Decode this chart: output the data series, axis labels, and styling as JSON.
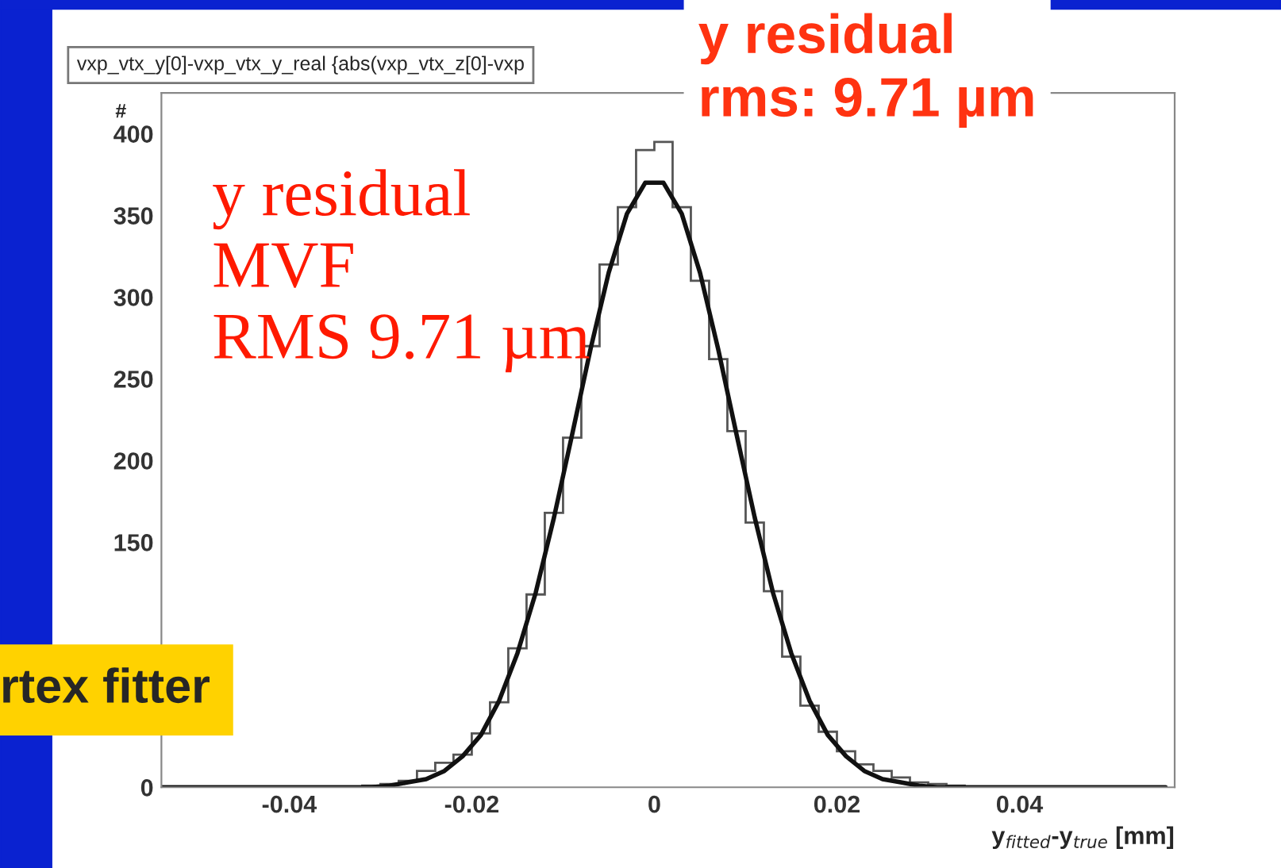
{
  "chart_data": {
    "type": "histogram",
    "xlabel": "y$_{fitted}$-y$_{true}$ [mm]",
    "ylabel": "#",
    "bins": [
      -0.054,
      -0.052,
      -0.05,
      -0.048,
      -0.046,
      -0.044,
      -0.042,
      -0.04,
      -0.038,
      -0.036,
      -0.034,
      -0.032,
      -0.03,
      -0.028,
      -0.026,
      -0.024,
      -0.022,
      -0.02,
      -0.018,
      -0.016,
      -0.014,
      -0.012,
      -0.01,
      -0.008,
      -0.006,
      -0.004,
      -0.002,
      0,
      0.002,
      0.004,
      0.006,
      0.008,
      0.01,
      0.012,
      0.014,
      0.016,
      0.018,
      0.02,
      0.022,
      0.024,
      0.026,
      0.028,
      0.03,
      0.032,
      0.034,
      0.036,
      0.038,
      0.04,
      0.042,
      0.044,
      0.046,
      0.048,
      0.05,
      0.052,
      0.054,
      0.056
    ],
    "values": [
      0,
      0,
      0,
      0,
      0,
      0,
      0,
      0,
      0,
      0,
      0,
      1,
      2,
      4,
      10,
      15,
      20,
      33,
      52,
      85,
      118,
      168,
      214,
      270,
      320,
      355,
      390,
      395,
      355,
      310,
      262,
      218,
      162,
      120,
      80,
      50,
      34,
      22,
      14,
      10,
      6,
      3,
      2,
      1,
      0,
      0,
      0,
      0,
      0,
      0,
      0,
      0,
      0,
      0,
      0
    ],
    "color": "#555555",
    "series": [
      {
        "type": "line",
        "color": "#111111",
        "x": [
          -0.054,
          -0.04,
          -0.035,
          -0.031,
          -0.029,
          -0.027,
          -0.025,
          -0.023,
          -0.021,
          -0.019,
          -0.017,
          -0.015,
          -0.013,
          -0.011,
          -0.009,
          -0.007,
          -0.005,
          -0.003,
          -0.001,
          0.001,
          0.003,
          0.005,
          0.007,
          0.009,
          0.011,
          0.013,
          0.015,
          0.017,
          0.019,
          0.021,
          0.023,
          0.025,
          0.027,
          0.029,
          0.031,
          0.035,
          0.04,
          0.056
        ],
        "values": [
          0,
          0,
          0,
          0,
          1,
          3,
          5,
          10,
          19,
          32,
          53,
          82,
          119,
          165,
          216,
          268,
          315,
          351,
          370,
          370,
          351,
          315,
          268,
          216,
          165,
          119,
          82,
          53,
          32,
          19,
          10,
          5,
          3,
          1,
          0,
          0,
          0,
          0
        ]
      }
    ],
    "xlim": [
      -0.054,
      0.057
    ],
    "ylim": [
      0,
      425
    ],
    "xticks": [
      -0.04,
      -0.02,
      0,
      0.02,
      0.04
    ],
    "yticks": [
      0,
      150,
      200,
      250,
      300,
      350,
      400
    ],
    "grid": false,
    "annotations": [
      "vxp_vtx_y[0]-vxp_vtx_y_real {abs(vxp_vtx_z[0]-vxp",
      "y residual\nMVF\nRMS 9.71 µm",
      "y residual\nrms: 9.71 µm",
      "rtex fitter"
    ]
  }
}
